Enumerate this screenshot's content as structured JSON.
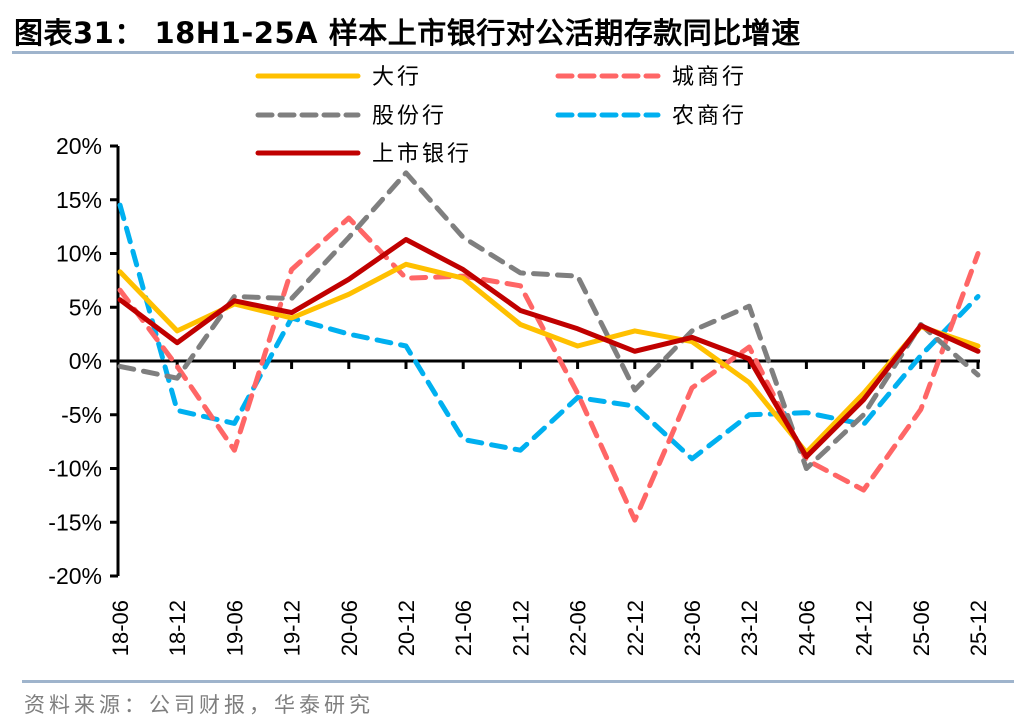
{
  "header": {
    "title": "图表31：  18H1-25A 样本上市银行对公活期存款同比增速"
  },
  "footer": {
    "source": "资料来源：公司财报，华泰研究"
  },
  "chart_data": {
    "type": "line",
    "title": "图表31：  18H1-25A 样本上市银行对公活期存款同比增速",
    "xlabel": "",
    "ylabel": "",
    "x": [
      "18-06",
      "18-12",
      "19-06",
      "19-12",
      "20-06",
      "20-12",
      "21-06",
      "21-12",
      "22-06",
      "22-12",
      "23-06",
      "23-12",
      "24-06",
      "24-12",
      "25-06",
      "25-12"
    ],
    "yticks": [
      "20%",
      "15%",
      "10%",
      "5%",
      "0%",
      "-5%",
      "-10%",
      "-15%",
      "-20%"
    ],
    "ylim": [
      -20,
      20
    ],
    "grid": false,
    "legend_position": "top-center",
    "unit": "%",
    "series": [
      {
        "name": "大行",
        "color": "#ffc000",
        "style": "solid",
        "values": [
          8.3,
          2.8,
          5.3,
          4.0,
          6.2,
          9.0,
          7.7,
          3.4,
          1.4,
          2.8,
          1.8,
          -2.0,
          -8.5,
          -3.0,
          3.2,
          1.4
        ]
      },
      {
        "name": "城商行",
        "color": "#ff6666",
        "style": "dashed",
        "values": [
          6.6,
          -0.5,
          -8.3,
          8.5,
          13.3,
          7.7,
          7.9,
          7.0,
          -3.0,
          -14.8,
          -2.5,
          1.3,
          -9.2,
          -12.0,
          -4.5,
          10.0
        ]
      },
      {
        "name": "股份行",
        "color": "#7f7f7f",
        "style": "dashed",
        "values": [
          -0.5,
          -1.6,
          6.0,
          5.8,
          11.5,
          17.5,
          11.5,
          8.2,
          7.9,
          -2.7,
          2.8,
          5.1,
          -10.0,
          -5.0,
          3.4,
          -1.3
        ]
      },
      {
        "name": "农商行",
        "color": "#00b0f0",
        "style": "dashed",
        "values": [
          14.5,
          -4.6,
          -5.8,
          4.0,
          2.5,
          1.4,
          -7.3,
          -8.3,
          -3.4,
          -4.2,
          -9.1,
          -5.0,
          -4.8,
          -5.9,
          0.5,
          6.0
        ]
      },
      {
        "name": "上市银行",
        "color": "#c00000",
        "style": "solid",
        "values": [
          5.7,
          1.7,
          5.6,
          4.5,
          7.6,
          11.3,
          8.5,
          4.7,
          3.0,
          0.9,
          2.2,
          0.2,
          -8.9,
          -3.6,
          3.3,
          0.9
        ]
      }
    ],
    "legend": [
      {
        "label": "大行",
        "series": 0
      },
      {
        "label": "城商行",
        "series": 1
      },
      {
        "label": "股份行",
        "series": 2
      },
      {
        "label": "农商行",
        "series": 3
      },
      {
        "label": "上市银行",
        "series": 4
      }
    ]
  }
}
